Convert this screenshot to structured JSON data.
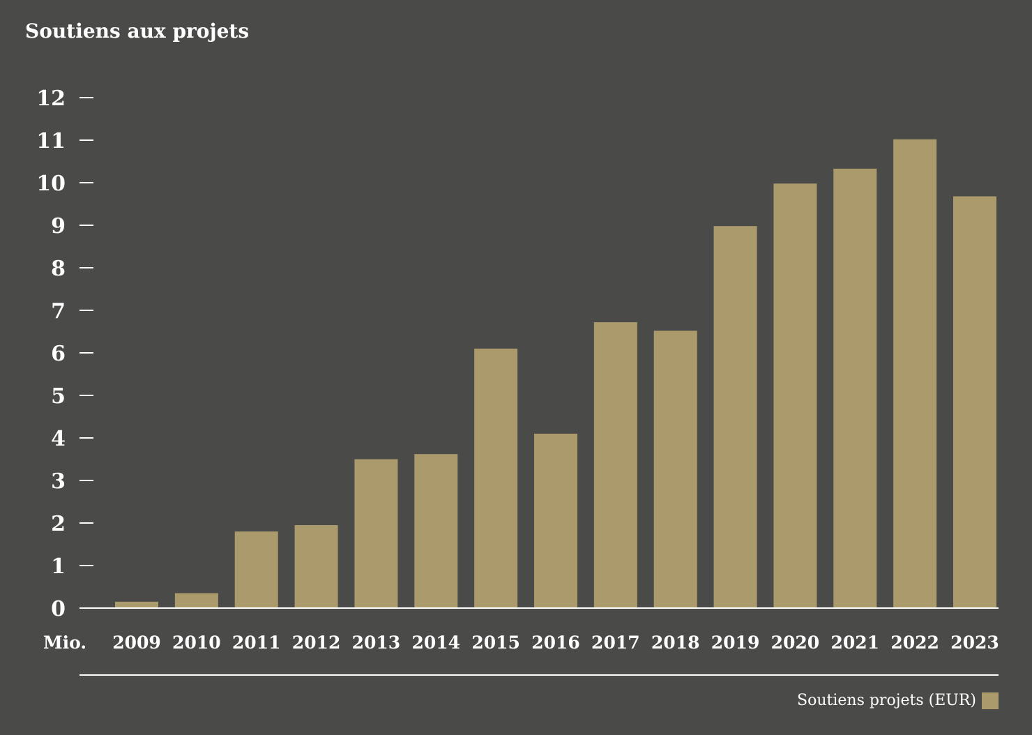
{
  "chart_data": {
    "type": "bar",
    "title": "Soutiens aux projets",
    "ylabel": "Mio.",
    "xlabel": "",
    "ylim": [
      0,
      12
    ],
    "yticks": [
      "0",
      "1",
      "2",
      "3",
      "4",
      "5",
      "6",
      "7",
      "8",
      "9",
      "10",
      "11",
      "12"
    ],
    "categories": [
      "2009",
      "2010",
      "2011",
      "2012",
      "2013",
      "2014",
      "2015",
      "2016",
      "2017",
      "2018",
      "2019",
      "2020",
      "2021",
      "2022",
      "2023"
    ],
    "series": [
      {
        "name": "Soutiens projets (EUR)",
        "values": [
          0.15,
          0.35,
          1.8,
          1.95,
          3.5,
          3.62,
          6.1,
          4.1,
          6.72,
          6.52,
          8.98,
          9.98,
          10.33,
          11.02,
          9.68
        ]
      }
    ],
    "legend_position": "bottom-right",
    "grid": false,
    "colors": {
      "background": "#4a4a48",
      "bar": "#ab9a6b",
      "text": "#ffffff",
      "axis": "#ffffff"
    }
  }
}
